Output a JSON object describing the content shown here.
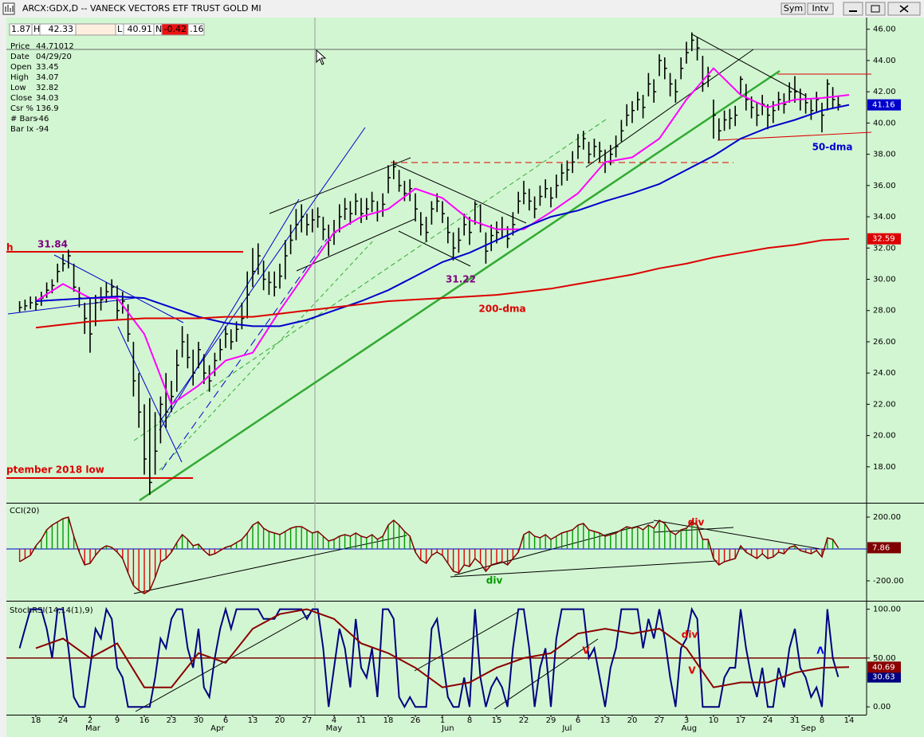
{
  "window": {
    "title": "ARCX:GDX,D -- VANECK VECTORS ETF TRUST GOLD MI",
    "buttons": [
      "Sym",
      "Intv"
    ]
  },
  "info_bar": {
    "last": "1.87",
    "high_label": "H",
    "high": "42.33",
    "low_label": "L",
    "low": "40.91",
    "net_label": "N",
    "net": "-0.42",
    "fraction": ".16"
  },
  "data_window": [
    [
      "Price",
      "44.71012"
    ],
    [
      "Date",
      "04/29/20"
    ],
    [
      "Open",
      "33.45"
    ],
    [
      "High",
      "34.07"
    ],
    [
      "Low",
      "32.82"
    ],
    [
      "Close",
      "34.03"
    ],
    [
      "Csr %",
      "136.9"
    ],
    [
      "# Bars",
      "-46"
    ],
    [
      "Bar Ix",
      "-94"
    ]
  ],
  "x_axis": {
    "labels": [
      "18",
      "24",
      "2",
      "9",
      "16",
      "23",
      "30",
      "6",
      "13",
      "20",
      "27",
      "4",
      "11",
      "18",
      "26",
      "1",
      "8",
      "15",
      "22",
      "29",
      "6",
      "13",
      "20",
      "27",
      "3",
      "10",
      "17",
      "24",
      "31",
      "8",
      "14"
    ],
    "months": [
      "Mar",
      "Apr",
      "May",
      "Jun",
      "Jul",
      "Aug",
      "Sep"
    ]
  },
  "chart_data": [
    {
      "type": "ohlc",
      "color": "#000000",
      "ylim": [
        15.75,
        46.75
      ],
      "yticks": [
        {
          "value": 46,
          "label": "46.00"
        },
        {
          "value": 44,
          "label": "44.00"
        },
        {
          "value": 42,
          "label": "42.00"
        },
        {
          "value": 40,
          "label": "40.00"
        },
        {
          "value": 38,
          "label": "38.00"
        },
        {
          "value": 36,
          "label": "36.00"
        },
        {
          "value": 34,
          "label": "34.00"
        },
        {
          "value": 32,
          "label": "32.00"
        },
        {
          "value": 30,
          "label": "30.00"
        },
        {
          "value": 28,
          "label": "28.00"
        },
        {
          "value": 26,
          "label": "26.00"
        },
        {
          "value": 24,
          "label": "24.00"
        },
        {
          "value": 22,
          "label": "22.00"
        },
        {
          "value": 20,
          "label": "20.00"
        },
        {
          "value": 18,
          "label": "18.00"
        }
      ],
      "high": [
        28.6,
        28.7,
        28.9,
        28.9,
        29.2,
        29.8,
        30.0,
        31.0,
        31.6,
        31.9,
        31.0,
        29.5,
        28.5,
        28.8,
        29.0,
        29.5,
        29.8,
        30.0,
        29.6,
        29.2,
        28.4,
        26.0,
        24.0,
        22.0,
        22.4,
        21.5,
        22.5,
        24.0,
        23.5,
        25.5,
        27.0,
        26.5,
        25.5,
        26.0,
        25.2,
        24.5,
        25.3,
        26.2,
        27.0,
        26.8,
        27.3,
        28.5,
        30.5,
        32.0,
        32.3,
        31.2,
        30.5,
        30.5,
        31.0,
        32.5,
        33.5,
        34.5,
        34.8,
        34.2,
        34.5,
        34.6,
        34.0,
        33.5,
        33.8,
        34.8,
        35.2,
        35.0,
        35.5,
        35.2,
        35.2,
        35.6,
        35.0,
        35.5,
        37.3,
        37.6,
        37.0,
        36.3,
        36.4,
        35.5,
        34.3,
        34.0,
        35.0,
        35.5,
        35.0,
        34.0,
        33.0,
        33.3,
        34.2,
        34.0,
        35.0,
        34.8,
        33.0,
        33.5,
        33.7,
        34.0,
        33.4,
        34.3,
        35.6,
        36.3,
        35.8,
        35.3,
        36.0,
        36.4,
        35.9,
        36.7,
        37.4,
        37.6,
        38.2,
        39.3,
        39.5,
        38.8,
        39.0,
        38.8,
        38.3,
        38.6,
        39.2,
        40.2,
        41.2,
        41.4,
        42.0,
        41.8,
        43.2,
        42.8,
        44.4,
        44.2,
        43.2,
        42.8,
        44.2,
        45.2,
        45.8,
        45.5,
        44.3,
        43.6,
        41.5,
        40.3,
        40.8,
        40.9,
        41.1,
        43.0,
        42.5,
        41.7,
        41.3,
        41.8,
        41.2,
        41.4,
        42.0,
        41.9,
        42.6,
        43.0,
        42.2,
        41.9,
        41.5,
        42.0,
        41.3,
        42.8,
        42.3,
        41.7
      ],
      "low": [
        27.9,
        28.0,
        28.1,
        28.0,
        28.3,
        28.8,
        29.1,
        29.8,
        30.5,
        30.7,
        29.2,
        28.2,
        26.5,
        25.3,
        27.0,
        28.0,
        28.5,
        28.8,
        27.4,
        27.8,
        26.0,
        22.5,
        20.5,
        17.5,
        16.2,
        17.5,
        19.5,
        20.5,
        21.5,
        22.8,
        25.0,
        24.3,
        23.2,
        24.3,
        23.3,
        22.8,
        23.8,
        24.8,
        25.6,
        25.5,
        26.0,
        26.8,
        27.5,
        29.5,
        30.3,
        29.3,
        29.0,
        28.9,
        29.4,
        30.0,
        31.6,
        32.5,
        33.0,
        32.8,
        33.0,
        33.3,
        32.5,
        31.5,
        32.2,
        33.0,
        33.8,
        33.5,
        34.1,
        33.6,
        33.8,
        34.3,
        33.7,
        34.0,
        35.5,
        36.4,
        35.6,
        35.0,
        35.0,
        33.7,
        32.8,
        32.4,
        33.5,
        34.3,
        33.6,
        32.3,
        31.2,
        31.7,
        32.8,
        32.2,
        33.5,
        33.0,
        31.0,
        31.8,
        32.3,
        32.6,
        32.0,
        32.8,
        34.2,
        34.8,
        34.4,
        33.9,
        34.7,
        35.2,
        34.6,
        35.2,
        36.0,
        36.3,
        36.8,
        37.7,
        38.3,
        37.4,
        37.8,
        37.5,
        36.8,
        37.3,
        37.8,
        38.8,
        39.8,
        40.0,
        40.8,
        40.3,
        41.7,
        41.3,
        43.0,
        42.8,
        41.7,
        41.3,
        42.8,
        43.8,
        44.6,
        44.0,
        42.0,
        42.3,
        39.0,
        38.9,
        39.5,
        39.6,
        39.8,
        41.8,
        40.8,
        40.3,
        39.8,
        40.5,
        39.6,
        40.0,
        40.8,
        40.6,
        41.3,
        41.3,
        40.8,
        40.6,
        40.2,
        40.7,
        39.4,
        40.8,
        40.9,
        40.8
      ],
      "close": [
        28.2,
        28.3,
        28.5,
        28.4,
        28.8,
        29.3,
        29.6,
        30.5,
        31.0,
        31.5,
        29.5,
        28.8,
        27.5,
        26.5,
        28.5,
        28.7,
        29.2,
        29.5,
        28.0,
        28.6,
        26.5,
        23.5,
        21.5,
        18.5,
        17.0,
        19.0,
        22.0,
        21.5,
        22.5,
        24.5,
        26.0,
        25.0,
        24.0,
        25.5,
        24.0,
        23.5,
        24.8,
        25.5,
        26.5,
        26.0,
        26.8,
        27.5,
        29.0,
        30.5,
        31.5,
        30.0,
        29.8,
        29.5,
        30.2,
        31.5,
        32.5,
        33.5,
        34.0,
        33.5,
        33.8,
        34.0,
        33.2,
        32.5,
        33.0,
        34.0,
        34.5,
        34.2,
        35.0,
        34.2,
        34.5,
        35.0,
        34.3,
        34.8,
        36.5,
        37.2,
        36.0,
        35.5,
        35.8,
        34.5,
        33.5,
        33.0,
        34.5,
        35.0,
        34.2,
        33.0,
        32.0,
        32.5,
        33.5,
        33.0,
        34.8,
        33.5,
        31.8,
        32.8,
        33.0,
        33.2,
        32.6,
        33.5,
        35.0,
        35.5,
        35.0,
        34.5,
        35.3,
        35.8,
        35.2,
        36.0,
        36.8,
        37.0,
        37.5,
        38.5,
        39.0,
        38.0,
        38.5,
        38.2,
        37.5,
        38.0,
        38.5,
        39.5,
        40.5,
        40.8,
        41.5,
        41.0,
        42.5,
        42.0,
        44.0,
        43.5,
        42.5,
        42.0,
        43.5,
        44.5,
        45.3,
        44.8,
        42.5,
        43.0,
        40.5,
        39.5,
        40.2,
        40.3,
        40.5,
        42.8,
        41.5,
        41.0,
        40.5,
        41.2,
        40.5,
        40.8,
        41.5,
        41.2,
        42.0,
        42.0,
        41.5,
        41.3,
        40.8,
        41.5,
        40.5,
        42.5,
        41.5,
        41.16
      ],
      "series": [
        {
          "color": "#ff00ff",
          "values": [
            28.6,
            29.7,
            28.8,
            28.8,
            26.5,
            22.0,
            23.2,
            24.8,
            25.3,
            28.0,
            30.5,
            33.0,
            34.0,
            34.5,
            35.8,
            35.2,
            33.8,
            33.2,
            33.2,
            34.3,
            35.5,
            37.5,
            37.8,
            39.0,
            41.5,
            43.5,
            41.8,
            41.0,
            41.5,
            41.6,
            41.8
          ]
        },
        {
          "color": "#0000cc",
          "label_box": true,
          "values": [
            28.6,
            28.7,
            28.8,
            28.9,
            28.8,
            28.2,
            27.6,
            27.2,
            27.0,
            27.0,
            27.4,
            28.0,
            28.6,
            29.3,
            30.2,
            31.1,
            31.7,
            32.5,
            33.3,
            34.0,
            34.4,
            35.0,
            35.5,
            36.1,
            37.0,
            37.9,
            39.0,
            39.7,
            40.2,
            40.8,
            41.16
          ]
        },
        {
          "color": "#dd0000",
          "label_box": true,
          "values": [
            26.9,
            27.1,
            27.3,
            27.4,
            27.5,
            27.5,
            27.5,
            27.6,
            27.6,
            27.8,
            28.0,
            28.2,
            28.4,
            28.6,
            28.7,
            28.8,
            28.9,
            29.0,
            29.2,
            29.4,
            29.7,
            30.0,
            30.3,
            30.7,
            31.0,
            31.4,
            31.7,
            32.0,
            32.2,
            32.5,
            32.59
          ]
        }
      ],
      "annotations": [
        {
          "text": "31.84",
          "color": "#800080"
        },
        {
          "text": "31.22",
          "color": "#800080"
        },
        {
          "text": "200-dma",
          "color": "#dd0000"
        },
        {
          "text": "50-dma",
          "color": "#0000cc"
        },
        {
          "text": "ptember 2018 low",
          "color": "#dd0000"
        },
        {
          "text": "h",
          "color": "#dd0000"
        }
      ]
    },
    {
      "type": "histogram",
      "title": "CCI(20)",
      "ylim": [
        -320,
        280
      ],
      "reference_line": 0,
      "positive_color": "#009900",
      "negative_color": "#dd0000",
      "line_color": "#800000",
      "label_box": true,
      "yticks": [
        {
          "value": 200,
          "label": "200.00"
        },
        {
          "value": -200,
          "label": "-200.00"
        }
      ],
      "values": [
        -80,
        -60,
        -40,
        20,
        60,
        120,
        150,
        170,
        190,
        200,
        80,
        -20,
        -100,
        -90,
        -40,
        0,
        20,
        10,
        -20,
        -60,
        -150,
        -230,
        -260,
        -280,
        -260,
        -180,
        -80,
        -60,
        -20,
        40,
        90,
        60,
        20,
        30,
        -10,
        -40,
        -30,
        -10,
        10,
        20,
        40,
        60,
        100,
        150,
        170,
        130,
        110,
        100,
        90,
        110,
        130,
        140,
        140,
        120,
        100,
        110,
        80,
        50,
        60,
        80,
        90,
        80,
        100,
        80,
        70,
        90,
        60,
        80,
        150,
        180,
        150,
        110,
        80,
        -20,
        -70,
        -90,
        -40,
        -20,
        -40,
        -90,
        -140,
        -150,
        -100,
        -110,
        -60,
        -90,
        -140,
        -100,
        -90,
        -80,
        -100,
        -60,
        -20,
        90,
        110,
        80,
        70,
        90,
        60,
        80,
        100,
        110,
        120,
        150,
        160,
        120,
        110,
        100,
        80,
        90,
        100,
        120,
        140,
        130,
        140,
        120,
        150,
        130,
        180,
        160,
        110,
        90,
        120,
        130,
        170,
        150,
        60,
        60,
        -60,
        -100,
        -80,
        -70,
        -60,
        20,
        -20,
        -40,
        -60,
        -30,
        -60,
        -50,
        -20,
        -30,
        10,
        20,
        -10,
        -20,
        -30,
        -10,
        -50,
        70,
        60,
        7.86
      ],
      "annotations": [
        {
          "text": "div",
          "color": "#dd0000"
        },
        {
          "text": "div",
          "color": "#009900"
        }
      ]
    },
    {
      "type": "line",
      "title": "StochRSI(14,14(1),9)",
      "ylim": [
        -8,
        107
      ],
      "reference_line": 50,
      "yticks": [
        {
          "value": 100,
          "label": "100.00"
        },
        {
          "value": 50,
          "label": "50.00"
        },
        {
          "value": 0,
          "label": "0.00"
        }
      ],
      "series": [
        {
          "color": "#000080",
          "label_box": true,
          "values": [
            60,
            80,
            100,
            100,
            100,
            80,
            50,
            100,
            100,
            60,
            10,
            0,
            0,
            40,
            80,
            70,
            100,
            90,
            40,
            30,
            0,
            0,
            0,
            0,
            0,
            30,
            70,
            60,
            90,
            100,
            100,
            60,
            40,
            80,
            20,
            10,
            50,
            80,
            100,
            80,
            100,
            100,
            100,
            100,
            100,
            90,
            90,
            90,
            100,
            100,
            100,
            100,
            100,
            90,
            100,
            100,
            60,
            0,
            40,
            80,
            60,
            20,
            90,
            40,
            30,
            60,
            10,
            100,
            100,
            90,
            10,
            0,
            10,
            0,
            0,
            0,
            80,
            90,
            50,
            10,
            0,
            0,
            30,
            0,
            100,
            30,
            0,
            20,
            30,
            20,
            0,
            60,
            100,
            100,
            60,
            0,
            40,
            60,
            0,
            70,
            100,
            100,
            100,
            100,
            100,
            50,
            60,
            30,
            0,
            40,
            60,
            100,
            100,
            100,
            100,
            60,
            90,
            70,
            100,
            70,
            30,
            0,
            60,
            70,
            100,
            90,
            0,
            0,
            0,
            0,
            30,
            40,
            40,
            100,
            60,
            30,
            10,
            40,
            0,
            0,
            40,
            20,
            60,
            80,
            40,
            30,
            10,
            20,
            0,
            100,
            50,
            30.63
          ]
        },
        {
          "color": "#8b0000",
          "label_box": true,
          "values": [
            60,
            70,
            50,
            65,
            20,
            20,
            55,
            45,
            80,
            95,
            100,
            90,
            65,
            55,
            40,
            20,
            25,
            40,
            50,
            55,
            75,
            80,
            75,
            80,
            60,
            20,
            25,
            25,
            35,
            40,
            40.69
          ]
        }
      ],
      "annotations": [
        {
          "text": "div",
          "color": "#dd0000"
        },
        {
          "text": "V",
          "color": "#dd0000"
        },
        {
          "text": "V",
          "color": "#dd0000"
        },
        {
          "text": "Λ",
          "color": "#0000ff"
        }
      ]
    }
  ]
}
